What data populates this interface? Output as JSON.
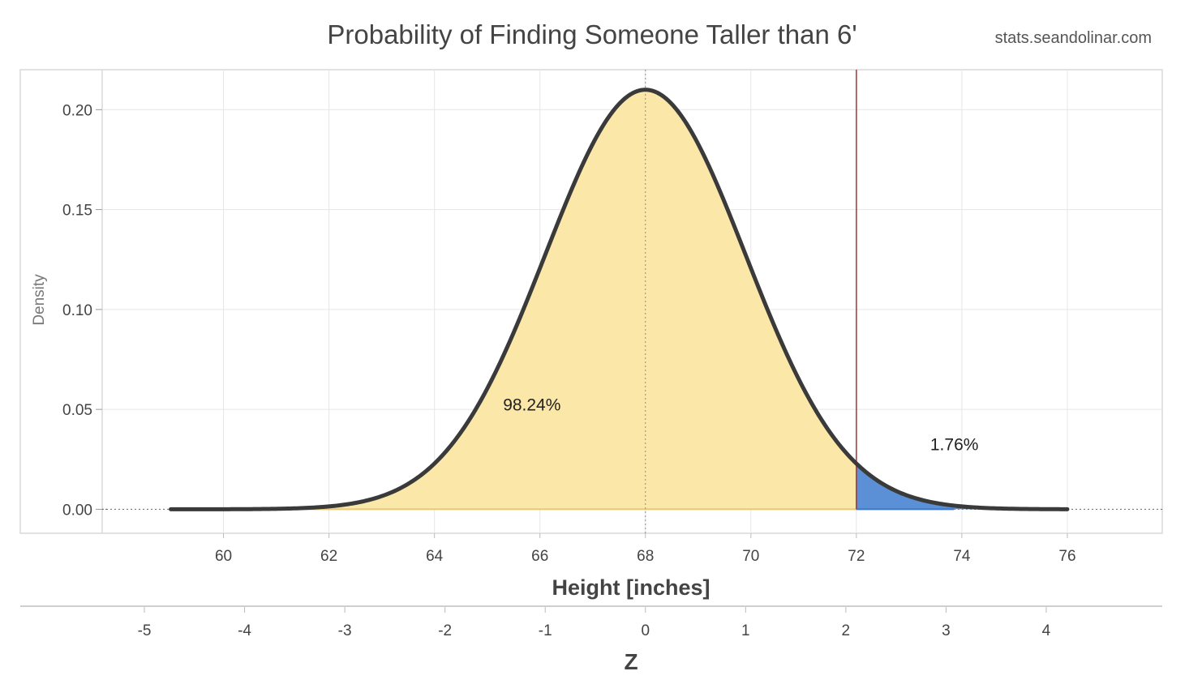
{
  "header": {
    "title": "Probability of Finding Someone Taller than 6'",
    "source": "stats.seandolinar.com"
  },
  "chart_data": {
    "type": "area",
    "title": "Probability of Finding Someone Taller than 6'",
    "distribution": {
      "mean": 68,
      "sd": 1.9,
      "x_range": [
        59,
        76
      ]
    },
    "xlabel": "Height [inches]",
    "ylabel": "Density",
    "x2label": "Z",
    "xlim": [
      57.7,
      77.8
    ],
    "ylim": [
      -0.012,
      0.22
    ],
    "x_ticks": [
      60,
      62,
      64,
      66,
      68,
      70,
      72,
      74,
      76
    ],
    "y_ticks": [
      0.0,
      0.05,
      0.1,
      0.15,
      0.2
    ],
    "y_tick_labels": [
      "0.00",
      "0.05",
      "0.10",
      "0.15",
      "0.20"
    ],
    "z_ticks": [
      -5,
      -4,
      -3,
      -2,
      -1,
      0,
      1,
      2,
      3,
      4
    ],
    "cutoff": 72,
    "regions": [
      {
        "label": "98.24%",
        "from": 59,
        "to": 72,
        "color": "#fbe7a8",
        "label_x": 65.3,
        "label_y": 0.0495
      },
      {
        "label": "1.76%",
        "from": 72,
        "to": 76,
        "color": "#5b8fd6",
        "label_x": 73.4,
        "label_y": 0.0295
      }
    ],
    "colors": {
      "curve": "#3a3a3a",
      "cutoff_line": "#b03030",
      "mean_line": "#888888",
      "grid": "#e6e6e6",
      "area_left": "#fbe7a8",
      "area_right": "#5b8fd6"
    },
    "grid": true
  }
}
